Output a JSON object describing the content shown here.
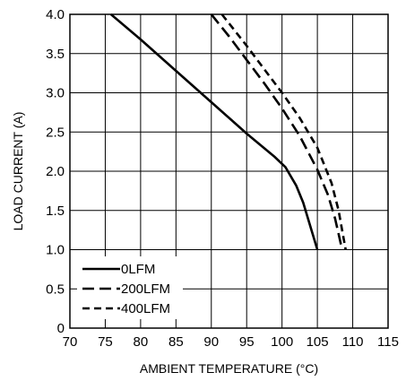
{
  "chart_data": {
    "type": "line",
    "xlabel": "AMBIENT TEMPERATURE (°C)",
    "ylabel": "LOAD CURRENT (A)",
    "xlim": [
      70,
      115
    ],
    "ylim": [
      0,
      4.0
    ],
    "xticks": [
      70,
      75,
      80,
      85,
      90,
      95,
      100,
      105,
      110,
      115
    ],
    "xtick_labels": [
      "70",
      "75",
      "80",
      "85",
      "90",
      "95",
      "100",
      "105",
      "110",
      "115"
    ],
    "yticks": [
      0,
      0.5,
      1.0,
      1.5,
      2.0,
      2.5,
      3.0,
      3.5,
      4.0
    ],
    "ytick_labels": [
      "0",
      "0.5",
      "1.0",
      "1.5",
      "2.0",
      "2.5",
      "3.0",
      "3.5",
      "4.0"
    ],
    "grid": true,
    "legend_position": "bottom-left",
    "series": [
      {
        "name": "0LFM",
        "style": "solid",
        "color": "#000000",
        "x": [
          75.8,
          80,
          85,
          90,
          95,
          99,
          100.5,
          102,
          103,
          104,
          105
        ],
        "y": [
          4.0,
          3.68,
          3.28,
          2.88,
          2.48,
          2.18,
          2.05,
          1.82,
          1.6,
          1.3,
          1.0
        ]
      },
      {
        "name": "200LFM",
        "style": "dashed",
        "color": "#000000",
        "x": [
          90,
          92.5,
          95,
          97.5,
          100,
          102.5,
          105,
          106.5,
          107.5,
          108,
          108.5
        ],
        "y": [
          4.0,
          3.72,
          3.42,
          3.12,
          2.8,
          2.45,
          2.02,
          1.7,
          1.4,
          1.2,
          1.0
        ]
      },
      {
        "name": "400LFM",
        "style": "dashed",
        "color": "#000000",
        "x": [
          91.5,
          95,
          97.5,
          100,
          102.5,
          105,
          107,
          108,
          108.5,
          109
        ],
        "y": [
          4.0,
          3.6,
          3.3,
          3.0,
          2.68,
          2.3,
          1.85,
          1.5,
          1.25,
          1.0
        ]
      }
    ]
  }
}
